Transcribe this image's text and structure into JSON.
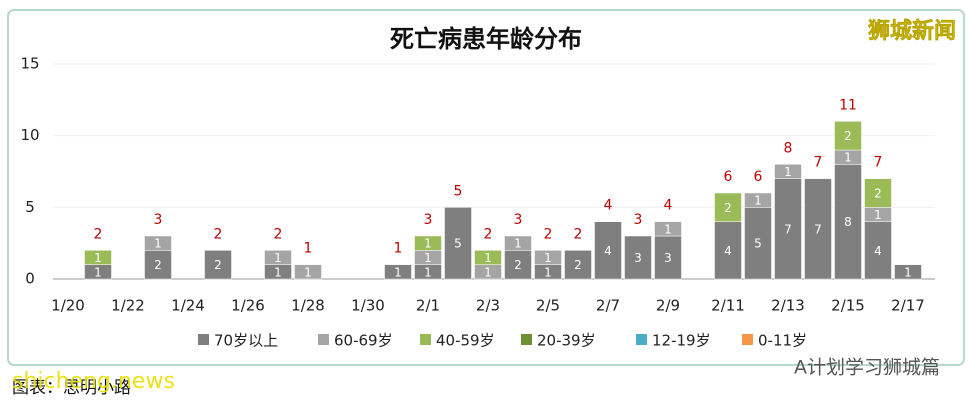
{
  "chart_data": {
    "type": "stacked-bar",
    "title": "死亡病患年龄分布",
    "categories": [
      "1/20",
      null,
      "1/22",
      null,
      "1/24",
      null,
      "1/26",
      null,
      "1/28",
      null,
      "1/30",
      null,
      "2/1",
      null,
      "2/3",
      null,
      "2/5",
      null,
      "2/7",
      null,
      "2/9",
      null,
      "2/11",
      null,
      "2/13",
      null,
      "2/15",
      null,
      "2/17"
    ],
    "series": [
      {
        "name": "70岁以上",
        "color": "#7f7f7f",
        "values": [
          null,
          1,
          null,
          2,
          null,
          2,
          null,
          1,
          null,
          null,
          null,
          1,
          1,
          5,
          null,
          2,
          1,
          2,
          4,
          3,
          3,
          null,
          4,
          5,
          7,
          7,
          8,
          4,
          1
        ]
      },
      {
        "name": "60-69岁",
        "color": "#a5a5a5",
        "values": [
          null,
          null,
          null,
          1,
          null,
          null,
          null,
          1,
          1,
          null,
          null,
          null,
          1,
          null,
          1,
          1,
          1,
          null,
          null,
          null,
          1,
          null,
          null,
          1,
          1,
          null,
          1,
          1,
          null
        ]
      },
      {
        "name": "40-59岁",
        "color": "#9bbb59",
        "values": [
          null,
          1,
          null,
          null,
          null,
          null,
          null,
          null,
          null,
          null,
          null,
          null,
          1,
          null,
          1,
          null,
          null,
          null,
          null,
          null,
          null,
          null,
          2,
          null,
          null,
          null,
          2,
          2,
          null
        ]
      },
      {
        "name": "20-39岁",
        "color": "#6f8f35",
        "values": [
          null,
          null,
          null,
          null,
          null,
          null,
          null,
          null,
          null,
          null,
          null,
          null,
          null,
          null,
          null,
          null,
          null,
          null,
          null,
          null,
          null,
          null,
          null,
          null,
          null,
          null,
          null,
          null,
          null
        ]
      },
      {
        "name": "12-19岁",
        "color": "#4bacc6",
        "values": [
          null,
          null,
          null,
          null,
          null,
          null,
          null,
          null,
          null,
          null,
          null,
          null,
          null,
          null,
          null,
          null,
          null,
          null,
          null,
          null,
          null,
          null,
          null,
          null,
          null,
          null,
          null,
          null,
          null
        ]
      },
      {
        "name": "0-11岁",
        "color": "#f79646",
        "values": [
          null,
          null,
          null,
          null,
          null,
          null,
          null,
          null,
          null,
          null,
          null,
          null,
          null,
          null,
          null,
          null,
          null,
          null,
          null,
          null,
          null,
          null,
          null,
          null,
          null,
          null,
          null,
          null,
          null
        ]
      }
    ],
    "totals": [
      null,
      2,
      null,
      3,
      null,
      2,
      null,
      2,
      1,
      null,
      null,
      1,
      3,
      5,
      2,
      3,
      2,
      2,
      4,
      3,
      4,
      null,
      6,
      6,
      8,
      7,
      11,
      7,
      null
    ],
    "ylim": [
      0,
      15
    ],
    "yticks": [
      0,
      5,
      10,
      15
    ],
    "grid": true,
    "watermark": "狮城新闻",
    "source": "图表：思明小路",
    "site": "shicheng.news",
    "wechat": "A计划学习狮城篇"
  }
}
